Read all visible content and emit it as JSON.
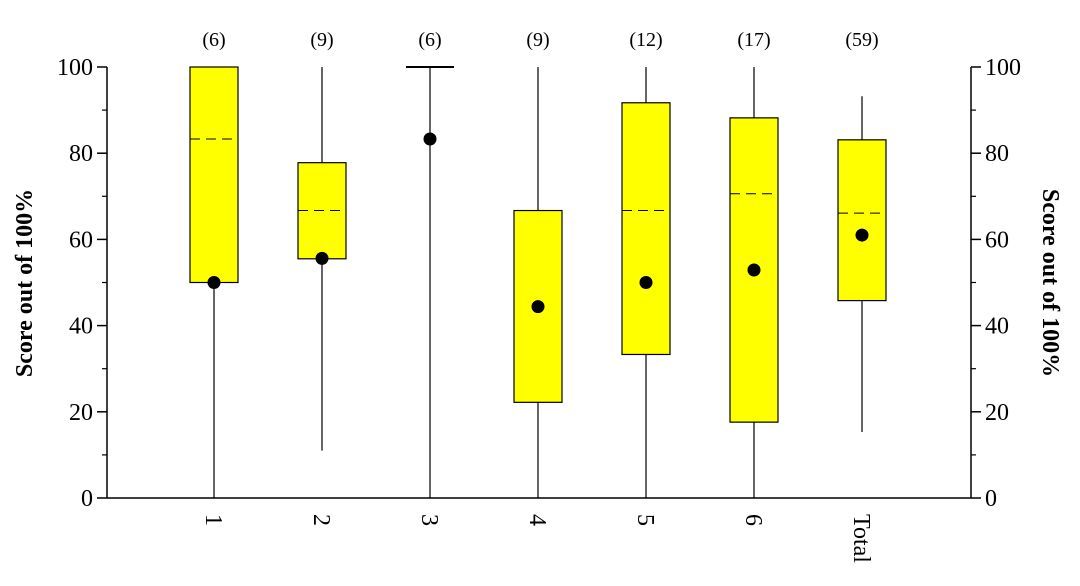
{
  "chart_data": {
    "type": "box",
    "categories": [
      "1",
      "2",
      "3",
      "4",
      "5",
      "6",
      "Total"
    ],
    "counts": [
      "(6)",
      "(9)",
      "(6)",
      "(9)",
      "(12)",
      "(17)",
      "(59)"
    ],
    "boxes": [
      {
        "category": "1",
        "whisker_low": 0,
        "q1": 50,
        "median": 83.3,
        "q3": 100,
        "whisker_high": 100,
        "mean": 50
      },
      {
        "category": "2",
        "whisker_low": 11,
        "q1": 55.5,
        "median": 66.7,
        "q3": 77.8,
        "whisker_high": 100,
        "mean": 55.6
      },
      {
        "category": "3",
        "whisker_low": 0,
        "q1": 100,
        "median": 100,
        "q3": 100,
        "whisker_high": 100,
        "mean": 83.3
      },
      {
        "category": "4",
        "whisker_low": 0,
        "q1": 22.2,
        "median": 66.7,
        "q3": 66.7,
        "whisker_high": 100,
        "mean": 44.4
      },
      {
        "category": "5",
        "whisker_low": 0,
        "q1": 33.3,
        "median": 66.7,
        "q3": 91.7,
        "whisker_high": 100,
        "mean": 50
      },
      {
        "category": "6",
        "whisker_low": 0,
        "q1": 17.6,
        "median": 70.6,
        "q3": 88.2,
        "whisker_high": 100,
        "mean": 52.9
      },
      {
        "category": "Total",
        "whisker_low": 15.3,
        "q1": 45.8,
        "median": 66.1,
        "q3": 83.1,
        "whisker_high": 93.2,
        "mean": 61
      }
    ],
    "ylabel": "Score out of 100%",
    "ylabel_right": "Score out of 100%",
    "ylim": [
      0,
      100
    ],
    "yticks_major": [
      0,
      20,
      40,
      60,
      80,
      100
    ],
    "yticks_minor": [
      10,
      30,
      50,
      70,
      90
    ],
    "box_color": "#ffff00",
    "mean_marker_color": "#000000",
    "grid": false
  }
}
